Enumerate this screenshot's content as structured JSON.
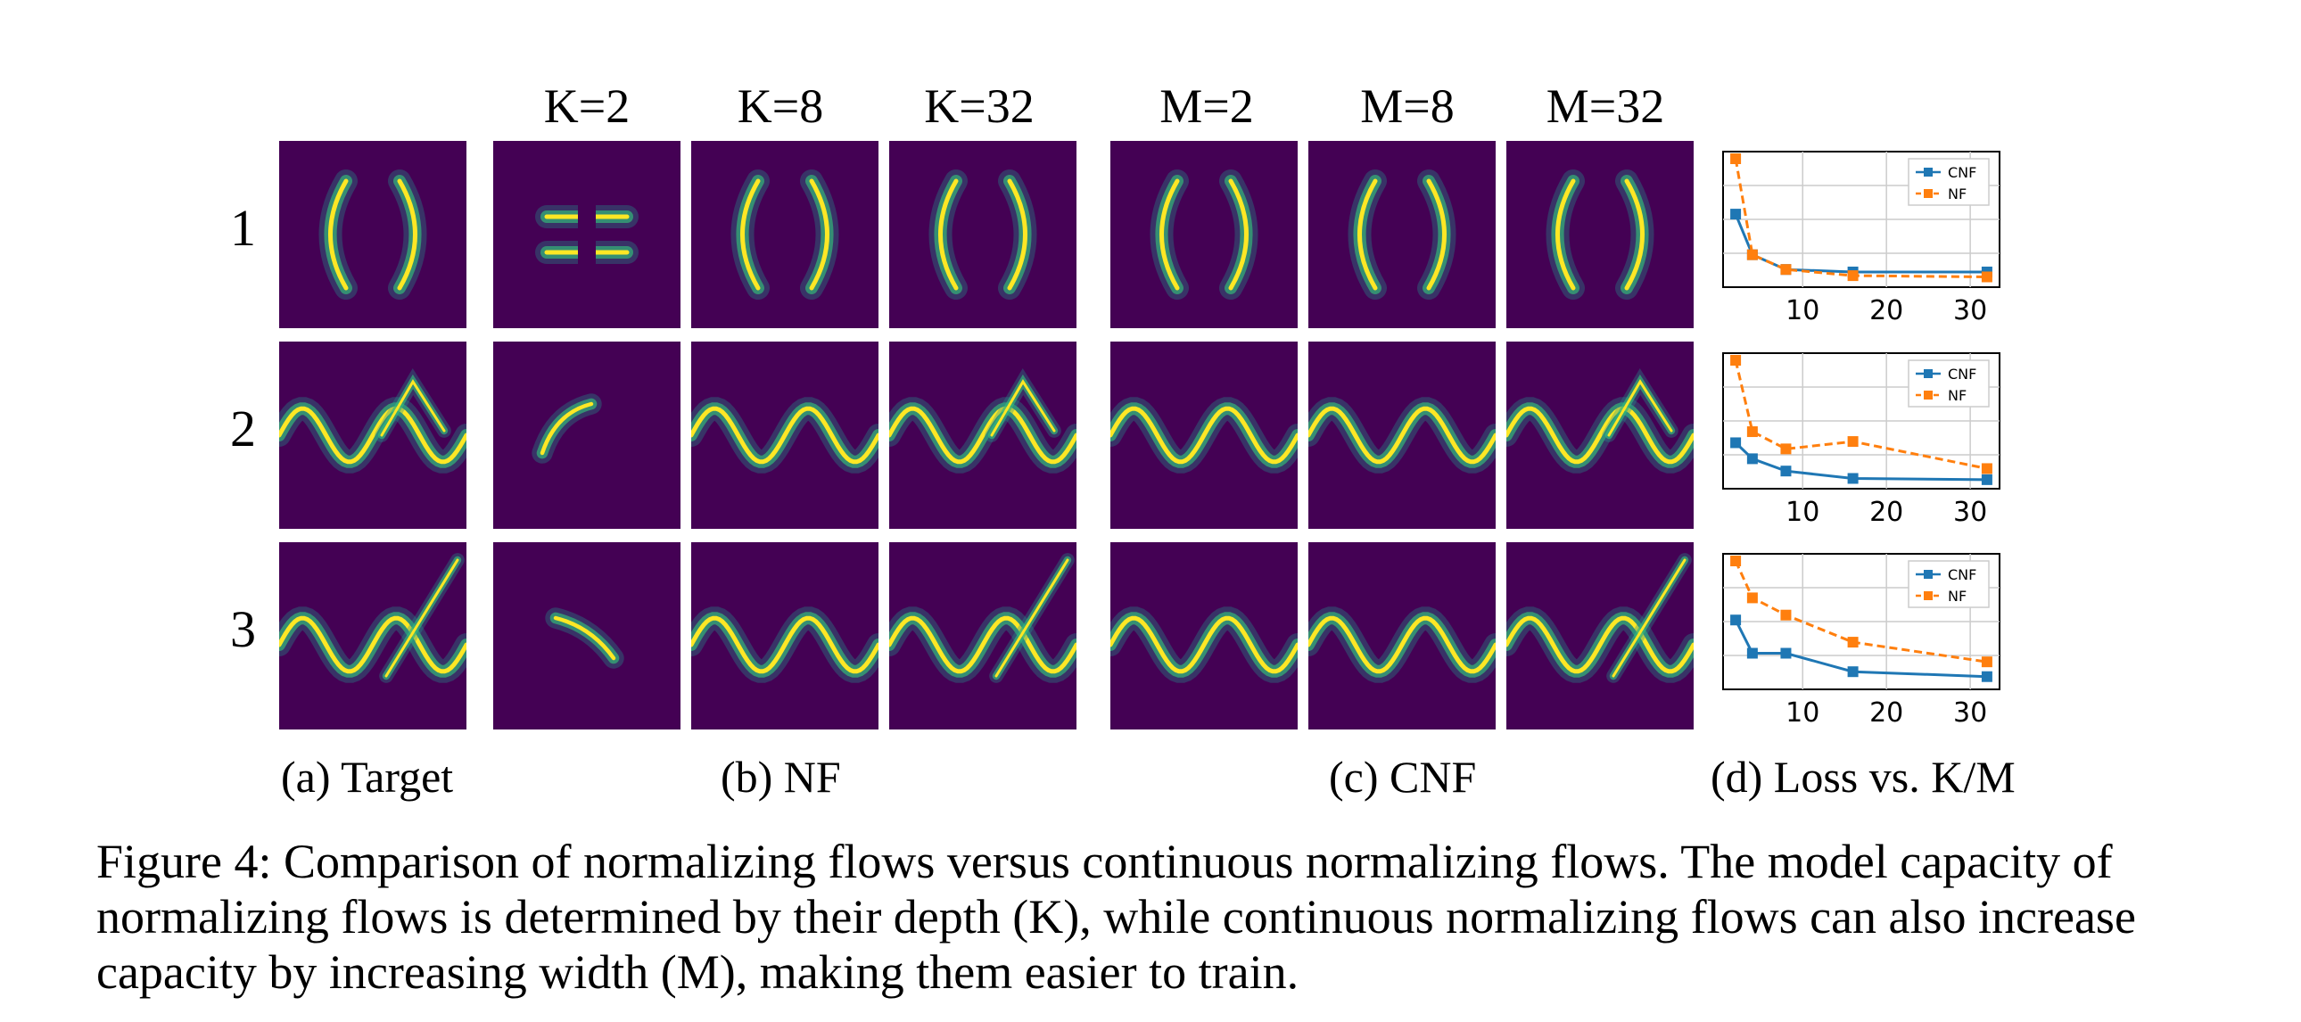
{
  "figure": {
    "column_headers": {
      "nf": [
        "K=2",
        "K=8",
        "K=32"
      ],
      "cnf": [
        "M=2",
        "M=8",
        "M=32"
      ]
    },
    "row_labels": [
      "1",
      "2",
      "3"
    ],
    "sublabels": {
      "a": "(a) Target",
      "b": "(b) NF",
      "c": "(c) CNF",
      "d": "(d) Loss vs. K/M"
    },
    "colors": {
      "background": "#440154",
      "cnf": "#1f77b4",
      "nf": "#ff7f0e",
      "grid": "#cccccc"
    }
  },
  "chart_data": [
    {
      "type": "line",
      "row": "1",
      "x": [
        2,
        4,
        8,
        16,
        32
      ],
      "xticks": [
        "10",
        "20",
        "30"
      ],
      "series": [
        {
          "name": "CNF",
          "values": [
            0.55,
            0.22,
            0.1,
            0.08,
            0.08
          ]
        },
        {
          "name": "NF",
          "values": [
            1.0,
            0.22,
            0.1,
            0.05,
            0.04
          ]
        }
      ],
      "legend": "top-right",
      "grid": true
    },
    {
      "type": "line",
      "row": "2",
      "x": [
        2,
        4,
        8,
        16,
        32
      ],
      "xticks": [
        "10",
        "20",
        "30"
      ],
      "series": [
        {
          "name": "CNF",
          "values": [
            0.33,
            0.2,
            0.1,
            0.04,
            0.03
          ]
        },
        {
          "name": "NF",
          "values": [
            1.0,
            0.42,
            0.28,
            0.34,
            0.12
          ]
        }
      ],
      "legend": "top-right",
      "grid": true
    },
    {
      "type": "line",
      "row": "3",
      "x": [
        2,
        4,
        8,
        16,
        32
      ],
      "xticks": [
        "10",
        "20",
        "30"
      ],
      "series": [
        {
          "name": "CNF",
          "values": [
            0.52,
            0.25,
            0.25,
            0.1,
            0.06
          ]
        },
        {
          "name": "NF",
          "values": [
            1.0,
            0.7,
            0.56,
            0.34,
            0.18
          ]
        }
      ],
      "legend": "top-right",
      "grid": true
    }
  ],
  "caption": "Figure 4: Comparison of normalizing flows versus continuous normalizing flows. The model capacity of normalizing flows is determined by their depth (K), while continuous normalizing flows can also increase capacity by increasing width (M), making them easier to train."
}
